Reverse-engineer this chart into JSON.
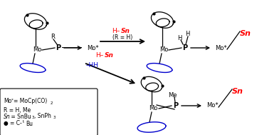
{
  "background_color": "#ffffff",
  "red_color": "#ff0000",
  "blue_color": "#0000cd",
  "black_color": "#000000",
  "top_left_R": "R",
  "top_left_P": "P",
  "top_left_Mo": "Mo",
  "top_left_Mostar": "Mo*",
  "top_right_H1": "H",
  "top_right_H2": "H",
  "top_right_P": "P",
  "top_right_Mo": "Mo",
  "top_right_Mostar": "Mo*",
  "top_right_Sn": "Sn",
  "bot_Me": "Me",
  "bot_P": "P",
  "bot_Mo": "Mo",
  "bot_Mostar": "Mo*",
  "bot_Sn": "Sn",
  "arrow_h_sn": "H–Sn",
  "arrow_r_h": "(R = H)",
  "arrow_diag_hsn": "H–Sn",
  "arrow_diag_hh": "–HH",
  "legend_line1a": "Mo",
  "legend_line1b": "*",
  "legend_line1c": "= MoCp(CO)",
  "legend_line1d": "2",
  "legend_line2": "R = H, Me",
  "legend_line3a": "Sn",
  "legend_line3b": " = SnBu",
  "legend_line3c": "3",
  "legend_line3d": ", SnPh",
  "legend_line3e": "3",
  "legend_line4a": "● = C-",
  "legend_line4b": "t",
  "legend_line4c": "Bu"
}
